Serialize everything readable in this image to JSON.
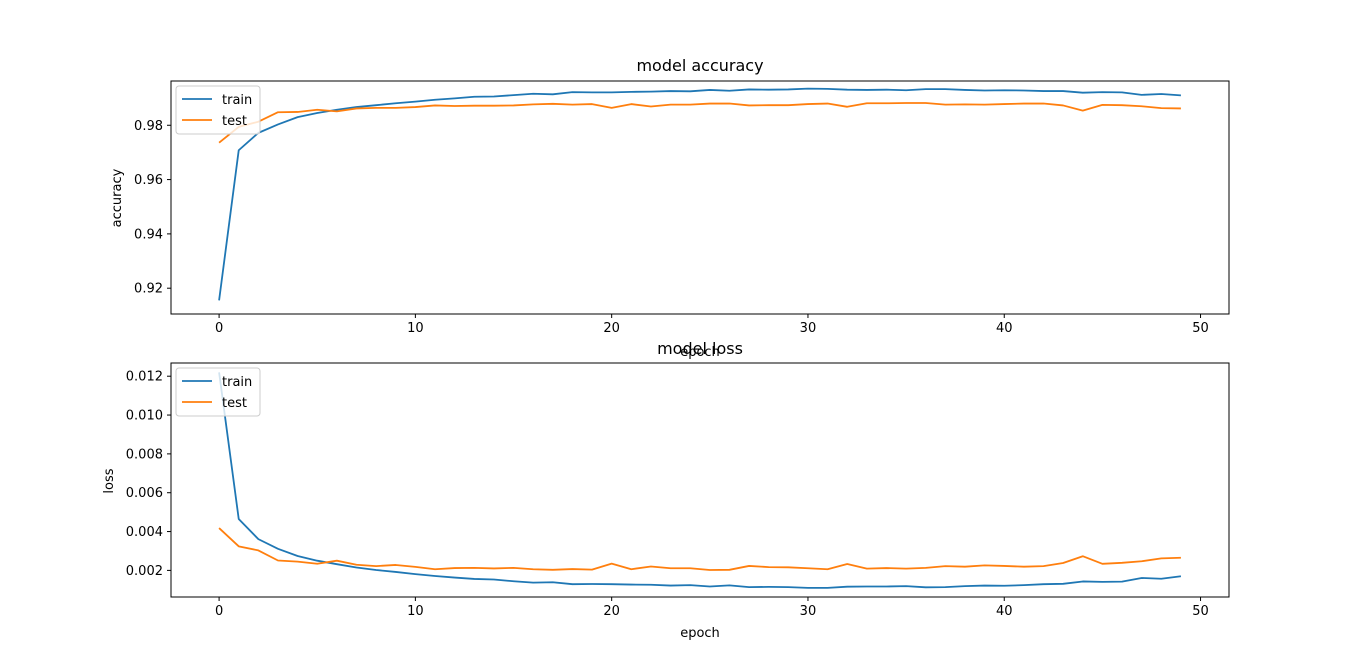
{
  "chart_data": [
    {
      "type": "line",
      "title": "model accuracy",
      "xlabel": "epoch",
      "ylabel": "accuracy",
      "xlim": [
        -2.45,
        51.45
      ],
      "ylim": [
        0.9105,
        0.9963
      ],
      "xticks": [
        0,
        10,
        20,
        30,
        40,
        50
      ],
      "yticks": [
        0.92,
        0.94,
        0.96,
        0.98
      ],
      "ytick_labels": [
        "0.92",
        "0.94",
        "0.96",
        "0.98"
      ],
      "legend_position": "upper-left",
      "grid": false,
      "series": [
        {
          "name": "train",
          "color": "#1f77b4",
          "x": [
            0,
            1,
            2,
            3,
            4,
            5,
            6,
            7,
            8,
            9,
            10,
            11,
            12,
            13,
            14,
            15,
            16,
            17,
            18,
            19,
            20,
            21,
            22,
            23,
            24,
            25,
            26,
            27,
            28,
            29,
            30,
            31,
            32,
            33,
            34,
            35,
            36,
            37,
            38,
            39,
            40,
            41,
            42,
            43,
            44,
            45,
            46,
            47,
            48,
            49
          ],
          "y": [
            0.9155,
            0.9708,
            0.9772,
            0.9803,
            0.983,
            0.9845,
            0.9857,
            0.9867,
            0.9874,
            0.9881,
            0.9887,
            0.9894,
            0.9899,
            0.9905,
            0.9906,
            0.9911,
            0.9916,
            0.9914,
            0.9922,
            0.9921,
            0.9921,
            0.9923,
            0.9924,
            0.9926,
            0.9925,
            0.993,
            0.9927,
            0.9932,
            0.9931,
            0.9932,
            0.9935,
            0.9934,
            0.9931,
            0.993,
            0.9931,
            0.9929,
            0.9933,
            0.9933,
            0.993,
            0.9928,
            0.9929,
            0.9928,
            0.9926,
            0.9926,
            0.992,
            0.9922,
            0.9921,
            0.9912,
            0.9915,
            0.991
          ]
        },
        {
          "name": "test",
          "color": "#ff7f0e",
          "x": [
            0,
            1,
            2,
            3,
            4,
            5,
            6,
            7,
            8,
            9,
            10,
            11,
            12,
            13,
            14,
            15,
            16,
            17,
            18,
            19,
            20,
            21,
            22,
            23,
            24,
            25,
            26,
            27,
            28,
            29,
            30,
            31,
            32,
            33,
            34,
            35,
            36,
            37,
            38,
            39,
            40,
            41,
            42,
            43,
            44,
            45,
            46,
            47,
            48,
            49
          ],
          "y": [
            0.9736,
            0.9794,
            0.9813,
            0.9848,
            0.9849,
            0.9857,
            0.9851,
            0.9862,
            0.9864,
            0.9864,
            0.9867,
            0.9873,
            0.9871,
            0.9872,
            0.9872,
            0.9873,
            0.9877,
            0.9879,
            0.9876,
            0.9878,
            0.9864,
            0.9878,
            0.9869,
            0.9876,
            0.9876,
            0.988,
            0.988,
            0.9873,
            0.9874,
            0.9874,
            0.9878,
            0.988,
            0.9868,
            0.9881,
            0.9881,
            0.9882,
            0.9882,
            0.9876,
            0.9877,
            0.9876,
            0.9878,
            0.988,
            0.988,
            0.9873,
            0.9854,
            0.9875,
            0.9874,
            0.987,
            0.9863,
            0.9862
          ]
        }
      ]
    },
    {
      "type": "line",
      "title": "model loss",
      "xlabel": "epoch",
      "ylabel": "loss",
      "xlim": [
        -2.45,
        51.45
      ],
      "ylim": [
        0.00063,
        0.01268
      ],
      "xticks": [
        0,
        10,
        20,
        30,
        40,
        50
      ],
      "yticks": [
        0.002,
        0.004,
        0.006,
        0.008,
        0.01,
        0.012
      ],
      "ytick_labels": [
        "0.002",
        "0.004",
        "0.006",
        "0.008",
        "0.010",
        "0.012"
      ],
      "legend_position": "upper-left",
      "grid": false,
      "series": [
        {
          "name": "train",
          "color": "#1f77b4",
          "x": [
            0,
            1,
            2,
            3,
            4,
            5,
            6,
            7,
            8,
            9,
            10,
            11,
            12,
            13,
            14,
            15,
            16,
            17,
            18,
            19,
            20,
            21,
            22,
            23,
            24,
            25,
            26,
            27,
            28,
            29,
            30,
            31,
            32,
            33,
            34,
            35,
            36,
            37,
            38,
            39,
            40,
            41,
            42,
            43,
            44,
            45,
            46,
            47,
            48,
            49
          ],
          "y": [
            0.0122,
            0.00465,
            0.00361,
            0.00311,
            0.00274,
            0.0025,
            0.00232,
            0.00215,
            0.00202,
            0.00192,
            0.00181,
            0.00171,
            0.00163,
            0.00156,
            0.00153,
            0.00144,
            0.00137,
            0.00139,
            0.00129,
            0.0013,
            0.00129,
            0.00127,
            0.00126,
            0.00122,
            0.00124,
            0.00117,
            0.00123,
            0.00114,
            0.00115,
            0.00114,
            0.0011,
            0.0011,
            0.00116,
            0.00117,
            0.00117,
            0.00119,
            0.00113,
            0.00114,
            0.00119,
            0.00122,
            0.00121,
            0.00124,
            0.00129,
            0.00131,
            0.00143,
            0.00141,
            0.00142,
            0.00161,
            0.00157,
            0.0017
          ]
        },
        {
          "name": "test",
          "color": "#ff7f0e",
          "x": [
            0,
            1,
            2,
            3,
            4,
            5,
            6,
            7,
            8,
            9,
            10,
            11,
            12,
            13,
            14,
            15,
            16,
            17,
            18,
            19,
            20,
            21,
            22,
            23,
            24,
            25,
            26,
            27,
            28,
            29,
            30,
            31,
            32,
            33,
            34,
            35,
            36,
            37,
            38,
            39,
            40,
            41,
            42,
            43,
            44,
            45,
            46,
            47,
            48,
            49
          ],
          "y": [
            0.00418,
            0.00324,
            0.00303,
            0.00251,
            0.00245,
            0.00234,
            0.0025,
            0.00229,
            0.00222,
            0.00228,
            0.00218,
            0.00206,
            0.00212,
            0.00213,
            0.0021,
            0.00213,
            0.00206,
            0.00203,
            0.00207,
            0.00204,
            0.00235,
            0.00206,
            0.0022,
            0.00211,
            0.00211,
            0.00202,
            0.00203,
            0.00223,
            0.00217,
            0.00216,
            0.00211,
            0.00206,
            0.00233,
            0.00209,
            0.00212,
            0.00209,
            0.00213,
            0.00222,
            0.00219,
            0.00226,
            0.00223,
            0.00219,
            0.00222,
            0.00238,
            0.00273,
            0.00234,
            0.00239,
            0.00247,
            0.00262,
            0.00265
          ]
        }
      ]
    }
  ]
}
